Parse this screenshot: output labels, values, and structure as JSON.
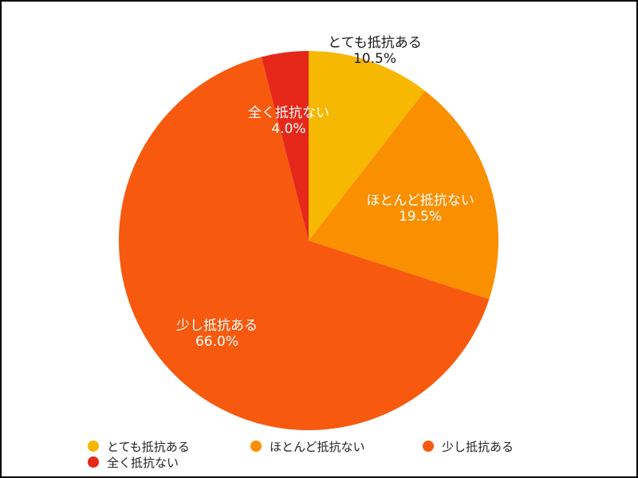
{
  "chart_data": {
    "type": "pie",
    "title": "",
    "start_angle_deg": 0,
    "direction": "clockwise",
    "legend_position": "bottom",
    "slices": [
      {
        "label": "とても抵抗ある",
        "value": 10.5,
        "value_text": "10.5%",
        "color": "#F6B800"
      },
      {
        "label": "ほとんど抵抗ない",
        "value": 19.5,
        "value_text": "19.5%",
        "color": "#FA8F00"
      },
      {
        "label": "少し抵抗ある",
        "value": 66.0,
        "value_text": "66.0%",
        "color": "#F75A0F"
      },
      {
        "label": "全く抵抗ない",
        "value": 4.0,
        "value_text": "4.0%",
        "color": "#E6281A"
      }
    ]
  },
  "legend": {
    "items": [
      {
        "label": "とても抵抗ある",
        "color": "#F6B800"
      },
      {
        "label": "ほとんど抵抗ない",
        "color": "#FA8F00"
      },
      {
        "label": "少し抵抗ある",
        "color": "#F75A0F"
      },
      {
        "label": "全く抵抗ない",
        "color": "#E6281A"
      }
    ]
  }
}
